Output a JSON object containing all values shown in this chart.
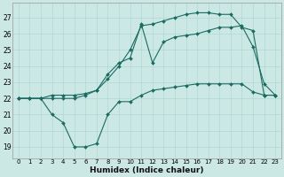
{
  "xlabel": "Humidex (Indice chaleur)",
  "bg_color": "#cce8e4",
  "line_color": "#1a6b60",
  "grid_color": "#b0d8d4",
  "x_ticks": [
    0,
    1,
    2,
    3,
    4,
    5,
    6,
    7,
    8,
    9,
    10,
    11,
    12,
    13,
    14,
    15,
    16,
    17,
    18,
    19,
    20,
    21,
    22,
    23
  ],
  "y_ticks": [
    19,
    20,
    21,
    22,
    23,
    24,
    25,
    26,
    27
  ],
  "xlim": [
    -0.5,
    23.5
  ],
  "ylim": [
    18.3,
    27.9
  ],
  "series": [
    {
      "x": [
        0,
        1,
        2,
        3,
        4,
        5,
        6,
        7,
        8,
        9,
        10,
        11,
        12,
        13,
        14,
        15,
        16,
        17,
        18,
        19,
        20,
        21,
        22,
        23
      ],
      "y": [
        22,
        22,
        22,
        22.2,
        22.2,
        22.2,
        22.3,
        22.5,
        23.2,
        24.0,
        25.0,
        26.5,
        26.6,
        26.8,
        27.0,
        27.2,
        27.3,
        27.3,
        27.2,
        27.2,
        26.4,
        26.2,
        22.2,
        22.2
      ]
    },
    {
      "x": [
        0,
        1,
        2,
        3,
        4,
        5,
        6,
        7,
        8,
        9,
        10,
        11,
        12,
        13,
        14,
        15,
        16,
        17,
        18,
        19,
        20,
        21,
        22,
        23
      ],
      "y": [
        22,
        22,
        22,
        22,
        22,
        22,
        22.2,
        22.5,
        23.5,
        24.2,
        24.5,
        26.6,
        24.2,
        25.5,
        25.8,
        25.9,
        26.0,
        26.2,
        26.4,
        26.4,
        26.5,
        25.2,
        22.9,
        22.2
      ]
    },
    {
      "x": [
        0,
        1,
        2,
        3,
        4,
        5,
        6,
        7,
        8,
        9,
        10,
        11,
        12,
        13,
        14,
        15,
        16,
        17,
        18,
        19,
        20,
        21,
        22,
        23
      ],
      "y": [
        22,
        22,
        22,
        21.0,
        20.5,
        19.0,
        19.0,
        19.2,
        21.0,
        21.8,
        21.8,
        22.2,
        22.5,
        22.6,
        22.7,
        22.8,
        22.9,
        22.9,
        22.9,
        22.9,
        22.9,
        22.4,
        22.2,
        22.2
      ]
    }
  ]
}
